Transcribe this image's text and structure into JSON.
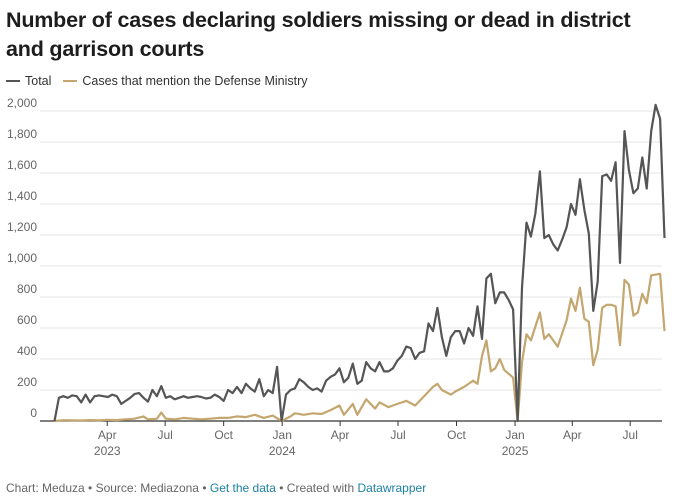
{
  "title": "Number of cases declaring soldiers missing or dead in district and garrison courts",
  "legend": {
    "total": "Total",
    "mod": "Cases that mention the Defense Ministry"
  },
  "colors": {
    "total": "#555555",
    "mod": "#c4a66f",
    "grid": "#e5e5e5",
    "axis": "#333333"
  },
  "footer": {
    "chart_by": "Chart: Meduza",
    "sep1": " • ",
    "source": "Source: Mediazona",
    "sep2": " • ",
    "get_data": "Get the data",
    "sep3": " • ",
    "created": "Created with ",
    "tool": "Datawrapper"
  },
  "chart_data": {
    "type": "line",
    "title": "Number of cases declaring soldiers missing or dead in district and garrison courts",
    "ylim": [
      0,
      2000
    ],
    "y_ticks": [
      0,
      200,
      400,
      600,
      800,
      1000,
      1200,
      1400,
      1600,
      1800,
      2000
    ],
    "y_tick_labels": [
      "0",
      "200",
      "400",
      "600",
      "800",
      "1,000",
      "1,200",
      "1,400",
      "1,600",
      "1,800",
      "2,000"
    ],
    "x_range": [
      "2023-01-01",
      "2025-08-20"
    ],
    "x_ticks": [
      {
        "date": "2023-04-01",
        "label": "Apr",
        "year": "2023"
      },
      {
        "date": "2023-07-01",
        "label": "Jul",
        "year": ""
      },
      {
        "date": "2023-10-01",
        "label": "Oct",
        "year": ""
      },
      {
        "date": "2024-01-01",
        "label": "Jan",
        "year": "2024"
      },
      {
        "date": "2024-04-01",
        "label": "Apr",
        "year": ""
      },
      {
        "date": "2024-07-01",
        "label": "Jul",
        "year": ""
      },
      {
        "date": "2024-10-01",
        "label": "Oct",
        "year": ""
      },
      {
        "date": "2025-01-01",
        "label": "Jan",
        "year": "2025"
      },
      {
        "date": "2025-04-01",
        "label": "Apr",
        "year": ""
      },
      {
        "date": "2025-07-01",
        "label": "Jul",
        "year": ""
      }
    ],
    "grid": true,
    "legend_position": "top-left",
    "series": [
      {
        "name": "Total",
        "color": "#555555",
        "points": [
          [
            "2023-01-08",
            0
          ],
          [
            "2023-01-15",
            150
          ],
          [
            "2023-01-22",
            160
          ],
          [
            "2023-01-29",
            150
          ],
          [
            "2023-02-05",
            165
          ],
          [
            "2023-02-12",
            160
          ],
          [
            "2023-02-19",
            120
          ],
          [
            "2023-02-26",
            170
          ],
          [
            "2023-03-05",
            120
          ],
          [
            "2023-03-12",
            160
          ],
          [
            "2023-03-19",
            165
          ],
          [
            "2023-03-26",
            160
          ],
          [
            "2023-04-02",
            155
          ],
          [
            "2023-04-09",
            170
          ],
          [
            "2023-04-16",
            160
          ],
          [
            "2023-04-23",
            110
          ],
          [
            "2023-04-30",
            130
          ],
          [
            "2023-05-07",
            150
          ],
          [
            "2023-05-14",
            175
          ],
          [
            "2023-05-21",
            180
          ],
          [
            "2023-05-28",
            150
          ],
          [
            "2023-06-04",
            125
          ],
          [
            "2023-06-11",
            200
          ],
          [
            "2023-06-18",
            160
          ],
          [
            "2023-06-25",
            225
          ],
          [
            "2023-07-02",
            150
          ],
          [
            "2023-07-09",
            160
          ],
          [
            "2023-07-16",
            140
          ],
          [
            "2023-07-23",
            150
          ],
          [
            "2023-07-30",
            160
          ],
          [
            "2023-08-06",
            150
          ],
          [
            "2023-08-13",
            155
          ],
          [
            "2023-08-20",
            160
          ],
          [
            "2023-08-27",
            155
          ],
          [
            "2023-09-03",
            145
          ],
          [
            "2023-09-10",
            150
          ],
          [
            "2023-09-17",
            170
          ],
          [
            "2023-09-24",
            155
          ],
          [
            "2023-10-01",
            130
          ],
          [
            "2023-10-08",
            200
          ],
          [
            "2023-10-15",
            180
          ],
          [
            "2023-10-22",
            220
          ],
          [
            "2023-10-29",
            180
          ],
          [
            "2023-11-05",
            240
          ],
          [
            "2023-11-12",
            210
          ],
          [
            "2023-11-19",
            190
          ],
          [
            "2023-11-26",
            270
          ],
          [
            "2023-12-03",
            160
          ],
          [
            "2023-12-10",
            200
          ],
          [
            "2023-12-17",
            180
          ],
          [
            "2023-12-24",
            350
          ],
          [
            "2023-12-31",
            0
          ],
          [
            "2024-01-07",
            170
          ],
          [
            "2024-01-14",
            200
          ],
          [
            "2024-01-21",
            210
          ],
          [
            "2024-01-28",
            270
          ],
          [
            "2024-02-04",
            250
          ],
          [
            "2024-02-11",
            220
          ],
          [
            "2024-02-18",
            200
          ],
          [
            "2024-02-25",
            210
          ],
          [
            "2024-03-03",
            190
          ],
          [
            "2024-03-10",
            260
          ],
          [
            "2024-03-17",
            285
          ],
          [
            "2024-03-24",
            300
          ],
          [
            "2024-03-31",
            340
          ],
          [
            "2024-04-07",
            250
          ],
          [
            "2024-04-14",
            280
          ],
          [
            "2024-04-21",
            370
          ],
          [
            "2024-04-28",
            240
          ],
          [
            "2024-05-05",
            260
          ],
          [
            "2024-05-12",
            380
          ],
          [
            "2024-05-19",
            340
          ],
          [
            "2024-05-26",
            320
          ],
          [
            "2024-06-02",
            380
          ],
          [
            "2024-06-09",
            320
          ],
          [
            "2024-06-16",
            320
          ],
          [
            "2024-06-23",
            340
          ],
          [
            "2024-06-30",
            390
          ],
          [
            "2024-07-07",
            420
          ],
          [
            "2024-07-14",
            480
          ],
          [
            "2024-07-21",
            470
          ],
          [
            "2024-07-28",
            400
          ],
          [
            "2024-08-04",
            440
          ],
          [
            "2024-08-11",
            450
          ],
          [
            "2024-08-18",
            630
          ],
          [
            "2024-08-25",
            580
          ],
          [
            "2024-09-01",
            730
          ],
          [
            "2024-09-08",
            540
          ],
          [
            "2024-09-15",
            420
          ],
          [
            "2024-09-22",
            540
          ],
          [
            "2024-09-29",
            580
          ],
          [
            "2024-10-06",
            580
          ],
          [
            "2024-10-13",
            500
          ],
          [
            "2024-10-20",
            600
          ],
          [
            "2024-10-27",
            550
          ],
          [
            "2024-11-03",
            740
          ],
          [
            "2024-11-10",
            530
          ],
          [
            "2024-11-17",
            920
          ],
          [
            "2024-11-24",
            950
          ],
          [
            "2024-12-01",
            760
          ],
          [
            "2024-12-08",
            830
          ],
          [
            "2024-12-15",
            830
          ],
          [
            "2024-12-22",
            780
          ],
          [
            "2024-12-29",
            720
          ],
          [
            "2025-01-05",
            0
          ],
          [
            "2025-01-12",
            860
          ],
          [
            "2025-01-19",
            1280
          ],
          [
            "2025-01-26",
            1190
          ],
          [
            "2025-02-02",
            1340
          ],
          [
            "2025-02-09",
            1610
          ],
          [
            "2025-02-16",
            1180
          ],
          [
            "2025-02-23",
            1200
          ],
          [
            "2025-03-02",
            1140
          ],
          [
            "2025-03-09",
            1100
          ],
          [
            "2025-03-16",
            1170
          ],
          [
            "2025-03-23",
            1250
          ],
          [
            "2025-03-30",
            1400
          ],
          [
            "2025-04-06",
            1330
          ],
          [
            "2025-04-13",
            1560
          ],
          [
            "2025-04-20",
            1360
          ],
          [
            "2025-04-27",
            1210
          ],
          [
            "2025-05-04",
            710
          ],
          [
            "2025-05-11",
            900
          ],
          [
            "2025-05-18",
            1580
          ],
          [
            "2025-05-25",
            1590
          ],
          [
            "2025-06-01",
            1550
          ],
          [
            "2025-06-08",
            1670
          ],
          [
            "2025-06-15",
            1020
          ],
          [
            "2025-06-22",
            1870
          ],
          [
            "2025-06-29",
            1620
          ],
          [
            "2025-07-06",
            1470
          ],
          [
            "2025-07-13",
            1500
          ],
          [
            "2025-07-20",
            1700
          ],
          [
            "2025-07-27",
            1500
          ],
          [
            "2025-08-03",
            1870
          ],
          [
            "2025-08-10",
            2040
          ],
          [
            "2025-08-17",
            1950
          ],
          [
            "2025-08-24",
            1180
          ]
        ]
      },
      {
        "name": "Cases that mention the Defense Ministry",
        "color": "#c4a66f",
        "points": [
          [
            "2023-01-08",
            0
          ],
          [
            "2023-01-22",
            5
          ],
          [
            "2023-02-05",
            4
          ],
          [
            "2023-02-19",
            3
          ],
          [
            "2023-03-05",
            6
          ],
          [
            "2023-03-19",
            4
          ],
          [
            "2023-04-02",
            8
          ],
          [
            "2023-04-16",
            6
          ],
          [
            "2023-04-30",
            10
          ],
          [
            "2023-05-14",
            15
          ],
          [
            "2023-05-28",
            30
          ],
          [
            "2023-06-04",
            10
          ],
          [
            "2023-06-18",
            15
          ],
          [
            "2023-06-25",
            55
          ],
          [
            "2023-07-02",
            15
          ],
          [
            "2023-07-16",
            10
          ],
          [
            "2023-07-30",
            20
          ],
          [
            "2023-08-13",
            15
          ],
          [
            "2023-08-27",
            10
          ],
          [
            "2023-09-10",
            15
          ],
          [
            "2023-09-24",
            20
          ],
          [
            "2023-10-08",
            20
          ],
          [
            "2023-10-22",
            30
          ],
          [
            "2023-11-05",
            25
          ],
          [
            "2023-11-19",
            40
          ],
          [
            "2023-12-03",
            20
          ],
          [
            "2023-12-17",
            35
          ],
          [
            "2023-12-31",
            0
          ],
          [
            "2024-01-14",
            30
          ],
          [
            "2024-01-21",
            50
          ],
          [
            "2024-02-04",
            40
          ],
          [
            "2024-02-18",
            50
          ],
          [
            "2024-03-03",
            45
          ],
          [
            "2024-03-17",
            70
          ],
          [
            "2024-03-31",
            100
          ],
          [
            "2024-04-07",
            40
          ],
          [
            "2024-04-21",
            110
          ],
          [
            "2024-04-28",
            40
          ],
          [
            "2024-05-12",
            140
          ],
          [
            "2024-05-26",
            80
          ],
          [
            "2024-06-02",
            120
          ],
          [
            "2024-06-16",
            90
          ],
          [
            "2024-06-30",
            110
          ],
          [
            "2024-07-14",
            130
          ],
          [
            "2024-07-28",
            100
          ],
          [
            "2024-08-11",
            160
          ],
          [
            "2024-08-25",
            220
          ],
          [
            "2024-09-01",
            240
          ],
          [
            "2024-09-08",
            200
          ],
          [
            "2024-09-22",
            170
          ],
          [
            "2024-09-29",
            190
          ],
          [
            "2024-10-13",
            220
          ],
          [
            "2024-10-27",
            260
          ],
          [
            "2024-11-03",
            240
          ],
          [
            "2024-11-10",
            420
          ],
          [
            "2024-11-17",
            520
          ],
          [
            "2024-11-24",
            320
          ],
          [
            "2024-12-01",
            340
          ],
          [
            "2024-12-08",
            400
          ],
          [
            "2024-12-15",
            330
          ],
          [
            "2024-12-29",
            280
          ],
          [
            "2025-01-05",
            0
          ],
          [
            "2025-01-12",
            380
          ],
          [
            "2025-01-19",
            560
          ],
          [
            "2025-01-26",
            520
          ],
          [
            "2025-02-09",
            700
          ],
          [
            "2025-02-16",
            530
          ],
          [
            "2025-02-23",
            560
          ],
          [
            "2025-03-09",
            480
          ],
          [
            "2025-03-23",
            650
          ],
          [
            "2025-03-30",
            790
          ],
          [
            "2025-04-06",
            710
          ],
          [
            "2025-04-13",
            860
          ],
          [
            "2025-04-20",
            660
          ],
          [
            "2025-04-27",
            640
          ],
          [
            "2025-05-04",
            360
          ],
          [
            "2025-05-11",
            460
          ],
          [
            "2025-05-18",
            730
          ],
          [
            "2025-05-25",
            750
          ],
          [
            "2025-06-01",
            750
          ],
          [
            "2025-06-08",
            740
          ],
          [
            "2025-06-15",
            490
          ],
          [
            "2025-06-22",
            910
          ],
          [
            "2025-06-29",
            880
          ],
          [
            "2025-07-06",
            680
          ],
          [
            "2025-07-13",
            700
          ],
          [
            "2025-07-20",
            820
          ],
          [
            "2025-07-27",
            760
          ],
          [
            "2025-08-03",
            940
          ],
          [
            "2025-08-17",
            950
          ],
          [
            "2025-08-24",
            580
          ]
        ]
      }
    ]
  }
}
